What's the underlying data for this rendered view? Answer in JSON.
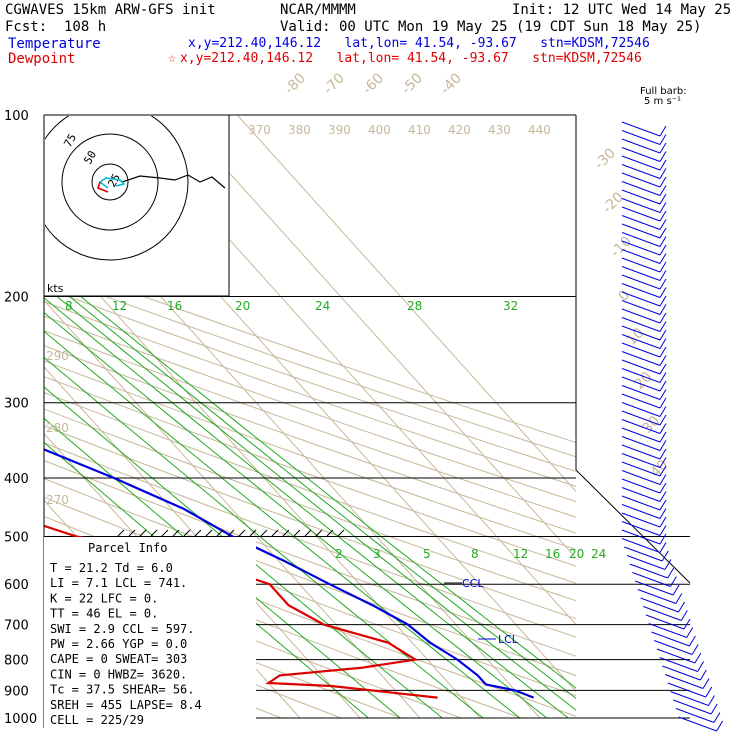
{
  "header": {
    "model": "CGWAVES 15km ARW-GFS init",
    "fcst": "Fcst:  108 h",
    "org": "NCAR/MMMM",
    "init": "Init: 12 UTC Wed 14 May 25",
    "valid": "Valid: 00 UTC Mon 19 May 25 (19 CDT Sun 18 May 25)",
    "temperature_label": "Temperature",
    "dewpoint_label": "Dewpoint",
    "temp_loc": "x,y=212.40,146.12   lat,lon= 41.54, -93.67   stn=KDSM,72546",
    "dew_loc": "x,y=212.40,146.12   lat,lon= 41.54, -93.67   stn=KDSM,72546",
    "dew_marker": "☆",
    "barb_legend_1": "Full barb:",
    "barb_legend_2": "5 m s⁻¹"
  },
  "colors": {
    "temperature": "#0000dd",
    "dewpoint": "#dd0000",
    "isotherm": "#c8b89a",
    "mixing_ratio": "#22aa22",
    "dry_adiabat": "#c8b89a",
    "theta_e": "#c8b89a",
    "isobar": "#000000"
  },
  "hodograph": {
    "rings": [
      "25",
      "50",
      "75"
    ],
    "units": "kts"
  },
  "annotations": {
    "ccl": "CCL",
    "lcl": "LCL",
    "parcel_title": "Parcel Info"
  },
  "parcel_info": [
    "T   =   21.2  Td =   6.0",
    "LI  =    7.1  LCL =  741.",
    "K   =     22  LFC =    0.",
    "TT  =     46  EL  =    0.",
    "SWI =    2.9  CCL =  597.",
    "PW  =   2.66  YGP =  0.0",
    "CAPE =     0  SWEAT=  303",
    "CIN  =     0  HWBZ= 3620.",
    "Tc  =   37.5  SHEAR=  56.",
    "SREH =   455  LAPSE=  8.4",
    "CELL = 225/29"
  ],
  "chart_data": {
    "type": "line",
    "title": "",
    "ylabel": "",
    "xlabel": "",
    "y_axis": "pressure (hPa), log scale, decreasing upward",
    "ylim": [
      1000,
      100
    ],
    "yticks": [
      100,
      200,
      300,
      400,
      500,
      600,
      700,
      800,
      900,
      1000
    ],
    "isotherm_labels": [
      "-80",
      "-70",
      "-60",
      "-50",
      "-40",
      "-30",
      "-20",
      "-10",
      "0",
      "10",
      "20",
      "30",
      "40"
    ],
    "dry_adiabat_labels": [
      "370",
      "380",
      "390",
      "400",
      "410",
      "420",
      "430",
      "440",
      "290",
      "280",
      "270"
    ],
    "mixing_ratio_labels_upper": [
      "8",
      "12",
      "16",
      "20",
      "24",
      "28",
      "32"
    ],
    "mixing_ratio_labels_lower": [
      "2",
      "3",
      "5",
      "8",
      "12",
      "16",
      "20",
      "24"
    ],
    "series": [
      {
        "name": "Temperature",
        "color": "#0000dd",
        "points": [
          [
            100,
            -60
          ],
          [
            120,
            -55
          ],
          [
            140,
            -54
          ],
          [
            160,
            -54
          ],
          [
            180,
            -55
          ],
          [
            200,
            -52
          ],
          [
            250,
            -42
          ],
          [
            300,
            -33
          ],
          [
            350,
            -24
          ],
          [
            400,
            -15
          ],
          [
            450,
            -8
          ],
          [
            500,
            -4
          ],
          [
            550,
            1
          ],
          [
            600,
            5
          ],
          [
            650,
            9
          ],
          [
            700,
            12
          ],
          [
            750,
            13
          ],
          [
            800,
            15
          ],
          [
            850,
            16
          ],
          [
            880,
            16
          ],
          [
            900,
            20
          ],
          [
            925,
            22
          ]
        ]
      },
      {
        "name": "Dewpoint",
        "color": "#dd0000",
        "points": [
          [
            100,
            -84
          ],
          [
            120,
            -84
          ],
          [
            140,
            -82
          ],
          [
            160,
            -79
          ],
          [
            180,
            -76
          ],
          [
            200,
            -72
          ],
          [
            250,
            -60
          ],
          [
            300,
            -50
          ],
          [
            330,
            -43
          ],
          [
            350,
            -37
          ],
          [
            400,
            -45
          ],
          [
            450,
            -40
          ],
          [
            500,
            -30
          ],
          [
            550,
            -13
          ],
          [
            600,
            -5
          ],
          [
            650,
            -5
          ],
          [
            700,
            -2
          ],
          [
            750,
            6
          ],
          [
            800,
            8
          ],
          [
            825,
            -2
          ],
          [
            850,
            -17
          ],
          [
            875,
            -20
          ],
          [
            885,
            -10
          ],
          [
            925,
            6
          ]
        ]
      }
    ],
    "wind_barbs": "vertical profile of wind barbs on right side, 100-1000 hPa"
  }
}
